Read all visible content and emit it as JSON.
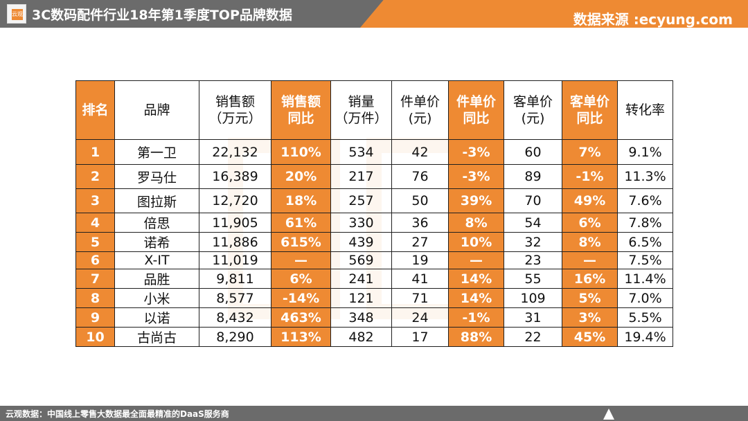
{
  "header": {
    "logo_text": "云观",
    "title": "3C数码配件行业18年第1季度TOP品牌数据",
    "source": "数据来源 :ecyung.com"
  },
  "colors": {
    "accent": "#ee8a33",
    "bar_gray": "#6b6b6b"
  },
  "table": {
    "headers": [
      {
        "line1": "排名",
        "line2": ""
      },
      {
        "line1": "品牌",
        "line2": ""
      },
      {
        "line1": "销售额",
        "line2": "（万元）"
      },
      {
        "line1": "销售额",
        "line2": "同比"
      },
      {
        "line1": "销量",
        "line2": "（万件）"
      },
      {
        "line1": "件单价",
        "line2": "(元)"
      },
      {
        "line1": "件单价",
        "line2": "同比"
      },
      {
        "line1": "客单价",
        "line2": "(元)"
      },
      {
        "line1": "客单价",
        "line2": "同比"
      },
      {
        "line1": "转化率",
        "line2": ""
      }
    ],
    "rows": [
      [
        "1",
        "第一卫",
        "22,132",
        "110%",
        "534",
        "42",
        "-3%",
        "60",
        "7%",
        "9.1%"
      ],
      [
        "2",
        "罗马仕",
        "16,389",
        "20%",
        "217",
        "76",
        "-3%",
        "89",
        "-1%",
        "11.3%"
      ],
      [
        "3",
        "图拉斯",
        "12,720",
        "18%",
        "257",
        "50",
        "39%",
        "70",
        "49%",
        "7.6%"
      ],
      [
        "4",
        "倍思",
        "11,905",
        "61%",
        "330",
        "36",
        "8%",
        "54",
        "6%",
        "7.8%"
      ],
      [
        "5",
        "诺希",
        "11,886",
        "615%",
        "439",
        "27",
        "10%",
        "32",
        "8%",
        "6.5%"
      ],
      [
        "6",
        "X-IT",
        "11,019",
        "—",
        "569",
        "19",
        "—",
        "23",
        "—",
        "7.5%"
      ],
      [
        "7",
        "品胜",
        "9,811",
        "6%",
        "241",
        "41",
        "14%",
        "55",
        "16%",
        "11.4%"
      ],
      [
        "8",
        "小米",
        "8,577",
        "-14%",
        "121",
        "71",
        "14%",
        "109",
        "5%",
        "7.0%"
      ],
      [
        "9",
        "以诺",
        "8,432",
        "463%",
        "348",
        "24",
        "-1%",
        "31",
        "3%",
        "5.5%"
      ],
      [
        "10",
        "古尚古",
        "8,290",
        "113%",
        "482",
        "17",
        "88%",
        "22",
        "45%",
        "19.4%"
      ]
    ]
  },
  "footer": {
    "text": "云观数据：中国线上零售大数据最全面最精准的DaaS服务商",
    "icon": "up-triangle-icon"
  }
}
